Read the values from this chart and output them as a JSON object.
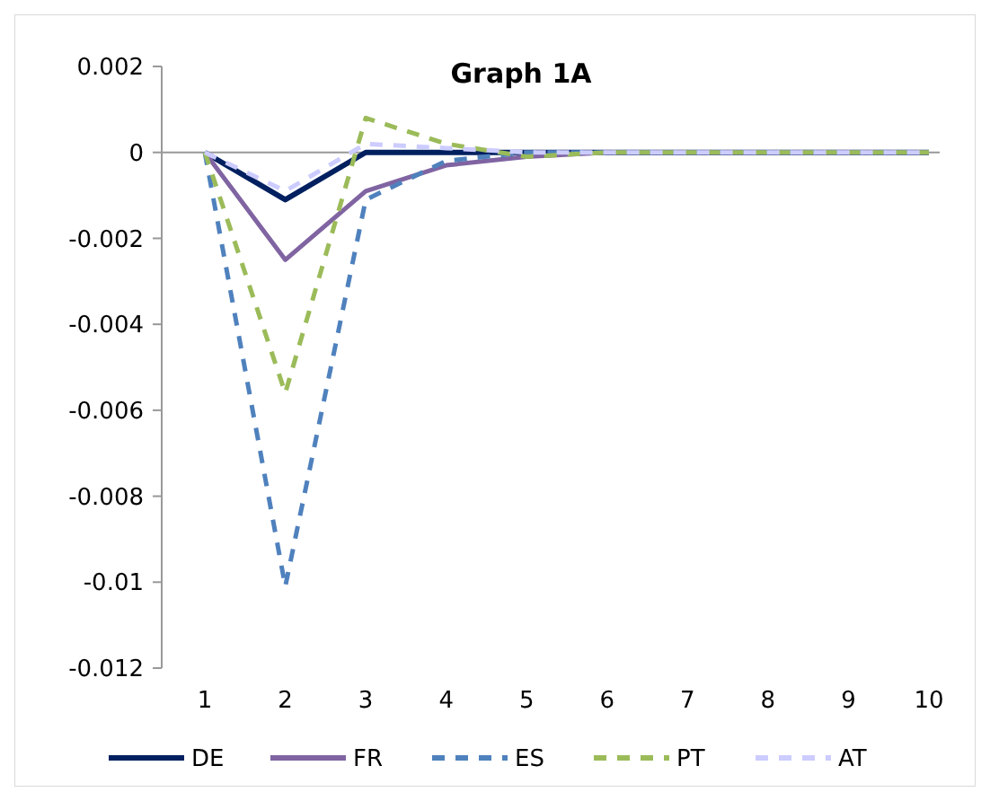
{
  "chart_data": {
    "type": "line",
    "title": "Graph 1A",
    "categories": [
      "1",
      "2",
      "3",
      "4",
      "5",
      "6",
      "7",
      "8",
      "9",
      "10"
    ],
    "ylim": [
      -0.012,
      0.002
    ],
    "yticks": [
      0.002,
      0,
      -0.002,
      -0.004,
      -0.006,
      -0.008,
      -0.01,
      -0.012
    ],
    "legend": "bottom",
    "series": [
      {
        "name": "DE",
        "color": "#002060",
        "line_style": "solid",
        "values": [
          0,
          -0.0011,
          0,
          0,
          0,
          0,
          0,
          0,
          0,
          0
        ]
      },
      {
        "name": "FR",
        "color": "#8064a2",
        "line_style": "solid",
        "values": [
          0,
          -0.0025,
          -0.0009,
          -0.0003,
          -0.0001,
          0,
          0,
          0,
          0,
          0
        ]
      },
      {
        "name": "ES",
        "color": "#4f81bd",
        "line_style": "dashed",
        "values": [
          0,
          -0.0101,
          -0.0011,
          -0.0002,
          0,
          0,
          0,
          0,
          0,
          0
        ]
      },
      {
        "name": "PT",
        "color": "#9bbb59",
        "line_style": "dashed",
        "values": [
          0,
          -0.0056,
          0.0008,
          0.0002,
          -0.0001,
          0,
          0,
          0,
          0,
          0
        ]
      },
      {
        "name": "AT",
        "color": "#ccccff",
        "line_style": "dashed",
        "values": [
          0,
          -0.0009,
          0.0002,
          0.0001,
          0,
          0,
          0,
          0,
          0,
          0
        ]
      }
    ]
  }
}
